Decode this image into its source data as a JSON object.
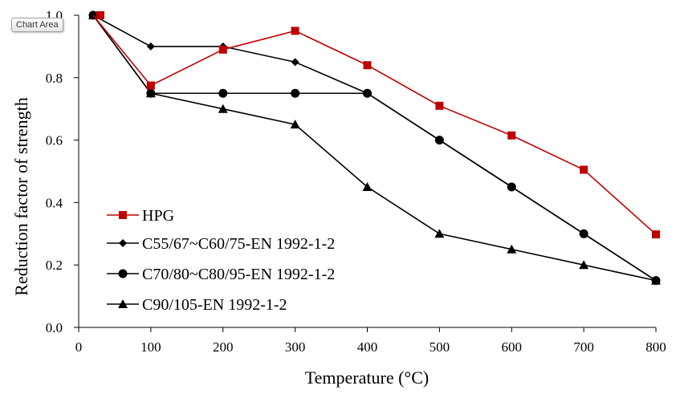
{
  "chart_data": {
    "type": "line",
    "xlabel": "Temperature (°C)",
    "ylabel": "Reduction factor of  strength",
    "xlim": [
      0,
      800
    ],
    "ylim": [
      0,
      1.0
    ],
    "xticks": [
      0,
      100,
      200,
      300,
      400,
      500,
      600,
      700,
      800
    ],
    "yticks": [
      0.0,
      0.2,
      0.4,
      0.6,
      0.8,
      1.0
    ],
    "xtick_labels": [
      "0",
      "100",
      "200",
      "300",
      "400",
      "500",
      "600",
      "700",
      "800"
    ],
    "ytick_labels": [
      "0.0",
      "0.2",
      "0.4",
      "0.6",
      "0.8",
      "1.0"
    ],
    "grid": false,
    "legend_position": "lower-left",
    "series": [
      {
        "name": "HPG",
        "marker": "square",
        "color": "#c00000",
        "x": [
          20,
          100,
          200,
          300,
          400,
          500,
          600,
          700,
          800
        ],
        "y": [
          1.0,
          0.775,
          0.89,
          0.95,
          0.84,
          0.71,
          0.615,
          0.505,
          0.298
        ]
      },
      {
        "name": "C55/67~C60/75-EN 1992-1-2",
        "marker": "diamond",
        "color": "#000000",
        "x": [
          20,
          100,
          200,
          300,
          400,
          500,
          600,
          700,
          800
        ],
        "y": [
          1.0,
          0.9,
          0.9,
          0.85,
          0.75,
          0.6,
          0.45,
          0.3,
          0.15
        ]
      },
      {
        "name": "C70/80~C80/95-EN 1992-1-2",
        "marker": "circle",
        "color": "#000000",
        "x": [
          20,
          100,
          200,
          300,
          400,
          500,
          600,
          700,
          800
        ],
        "y": [
          1.0,
          0.75,
          0.75,
          0.75,
          0.75,
          0.6,
          0.45,
          0.3,
          0.15
        ]
      },
      {
        "name": "C90/105-EN 1992-1-2",
        "marker": "triangle",
        "color": "#000000",
        "x": [
          20,
          100,
          200,
          300,
          400,
          500,
          600,
          700,
          800
        ],
        "y": [
          1.0,
          0.75,
          0.7,
          0.65,
          0.45,
          0.3,
          0.25,
          0.2,
          0.15
        ]
      }
    ]
  },
  "tooltip": {
    "label": "Chart Area"
  }
}
